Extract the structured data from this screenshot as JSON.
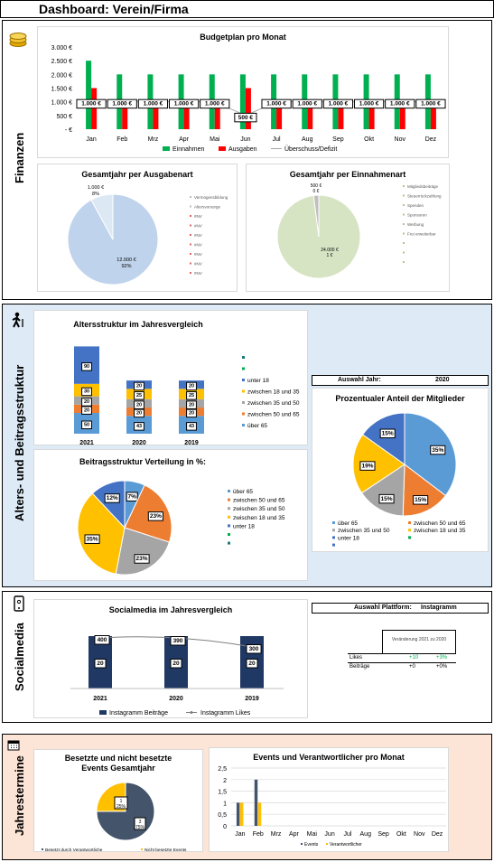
{
  "header": {
    "title": "Dashboard: Verein/Firma"
  },
  "sections": {
    "finanzen": "Finanzen",
    "alters": "Alters- und Beitragsstruktur",
    "social": "Socialmedia",
    "termine": "Jahrestermine"
  },
  "icons": {
    "finanzen": "coins-icon",
    "alters": "walking-person-icon",
    "social": "phone-icon",
    "termine": "calendar-icon"
  },
  "colors": {
    "finanzen_bg": "#ffffff",
    "alters_bg": "#deebf7",
    "social_bg": "#ffffff",
    "termine_bg": "#fce4d6",
    "green": "#00b050",
    "red": "#ff0000",
    "navy": "#203864"
  },
  "budget": {
    "chart_data": {
      "type": "bar",
      "title": "Budgetplan pro Monat",
      "categories": [
        "Jan",
        "Feb",
        "Mrz",
        "Apr",
        "Mai",
        "Jun",
        "Jul",
        "Aug",
        "Sep",
        "Okt",
        "Nov",
        "Dez"
      ],
      "yticks": [
        "3.000 €",
        "2.500 €",
        "2.000 €",
        "1.500 €",
        "1.000 €",
        "500 €",
        "- €"
      ],
      "ylim": [
        0,
        3000
      ],
      "series": [
        {
          "name": "Einnahmen",
          "values": [
            2500,
            2000,
            2000,
            2000,
            2000,
            2000,
            2000,
            2000,
            2000,
            2000,
            2000,
            2000
          ]
        },
        {
          "name": "Ausgaben",
          "values": [
            1500,
            1000,
            1000,
            1000,
            1000,
            1500,
            1000,
            1000,
            1000,
            1000,
            1000,
            1000
          ]
        },
        {
          "name": "Überschuss/Defizit",
          "values": [
            1000,
            1000,
            1000,
            1000,
            1000,
            500,
            1000,
            1000,
            1000,
            1000,
            1000,
            1000
          ]
        }
      ],
      "data_labels": [
        "1.000 €",
        "1.000 €",
        "1.000 €",
        "1.000 €",
        "1.000 €",
        "500 €",
        "1.000 €",
        "1.000 €",
        "1.000 €",
        "1.000 €",
        "1.000 €",
        "1.000 €"
      ]
    }
  },
  "ausgaben": {
    "chart_data": {
      "type": "pie",
      "title": "Gesamtjahr per Ausgabenart",
      "slices": [
        {
          "label": "12.000 €",
          "pct": "92%",
          "value": 92
        },
        {
          "label": "1.000 €",
          "pct": "8%",
          "value": 8
        }
      ],
      "legend": [
        "Vermögensbildung",
        "Altersvorsorge",
        "#NV",
        "#NV",
        "#NV",
        "#NV",
        "#NV",
        "#NV",
        "#NV"
      ]
    }
  },
  "einnahmen": {
    "chart_data": {
      "type": "pie",
      "title": "Gesamtjahr per Einnahmenart",
      "slices": [
        {
          "label": "24.000 €",
          "pct": "1 €",
          "value": 98
        },
        {
          "label": "500 €",
          "pct": "0 €",
          "value": 2
        }
      ],
      "legend": [
        "Mitgliedsbeiträge",
        "Steuerrückzahlung",
        "Spenden",
        "Sponsoren",
        "Werbung",
        "Frei erweiterbar",
        "",
        "",
        ""
      ]
    }
  },
  "alter": {
    "chart_data": {
      "type": "bar",
      "title": "Altersstruktur im Jahresvergleich",
      "categories": [
        "2021",
        "2020",
        "2019"
      ],
      "series": [
        {
          "name": "über 65",
          "values": [
            50,
            43,
            43
          ]
        },
        {
          "name": "zwischen 50 und 65",
          "values": [
            20,
            20,
            20
          ]
        },
        {
          "name": "zwischen 35 und 50",
          "values": [
            20,
            20,
            20
          ]
        },
        {
          "name": "zwischen 18 und 35",
          "values": [
            30,
            25,
            25
          ]
        },
        {
          "name": "unter 18",
          "values": [
            90,
            20,
            20
          ]
        }
      ],
      "legend": [
        "",
        "",
        "unter 18",
        "zwischen 18 und 35",
        "zwischen 35 und 50",
        "zwischen 50 und 65",
        "über 65"
      ]
    }
  },
  "beitrag": {
    "chart_data": {
      "type": "pie",
      "title": "Beitragsstruktur Verteilung in %:",
      "slices": [
        {
          "label": "7%",
          "value": 7
        },
        {
          "label": "23%",
          "value": 23
        },
        {
          "label": "23%",
          "value": 23
        },
        {
          "label": "35%",
          "value": 35
        },
        {
          "label": "12%",
          "value": 12
        }
      ],
      "legend": [
        "über 65",
        "zwischen 50 und 65",
        "zwischen 35 und 50",
        "zwischen 18 und 35",
        "unter 18",
        "",
        ""
      ]
    }
  },
  "auswahl_jahr": {
    "label": "Auswahl Jahr:",
    "value": "2020"
  },
  "prozent": {
    "chart_data": {
      "type": "pie",
      "title": "Prozentualer Anteil der Mitglieder",
      "slices": [
        {
          "label": "35%",
          "value": 35
        },
        {
          "label": "15%",
          "value": 15
        },
        {
          "label": "15%",
          "value": 15
        },
        {
          "label": "19%",
          "value": 19
        },
        {
          "label": "15%",
          "value": 15
        }
      ],
      "legend": [
        "über 65",
        "zwischen 50 und 65",
        "zwischen 35 und 50",
        "zwischen 18 und 35",
        "unter 18",
        "",
        ""
      ]
    }
  },
  "socialmedia": {
    "chart_data": {
      "type": "bar",
      "title": "Socialmedia im Jahresvergleich",
      "categories": [
        "2021",
        "2020",
        "2019"
      ],
      "series": [
        {
          "name": "Instagramm Beiträge",
          "values": [
            20,
            20,
            20
          ]
        },
        {
          "name": "Instagramm Likes",
          "values": [
            400,
            390,
            300
          ]
        }
      ]
    }
  },
  "auswahl_plattform": {
    "label": "Auswahl Plattform:",
    "value": "Instagramm"
  },
  "veraenderung": {
    "header": "Veränderung 2021 zu 2020",
    "rows": [
      {
        "label": "Likes",
        "a": "+10",
        "b": "+3%"
      },
      {
        "label": "Beiträge",
        "a": "+0",
        "b": "+0%"
      }
    ]
  },
  "events": {
    "chart_data": {
      "type": "pie",
      "title": "Besetzte und nicht besetzte Events Gesamtjahr",
      "title_line1": "Besetzte und nicht besetzte",
      "title_line2": "Events Gesamtjahr",
      "slices": [
        {
          "label": "3",
          "pct": "75%",
          "value": 75
        },
        {
          "label": "1",
          "pct": "25%",
          "value": 25
        }
      ],
      "legend": [
        "Besetzt durch Verantwortliche",
        "Nicht besetzte Events"
      ]
    }
  },
  "monat_events": {
    "chart_data": {
      "type": "bar",
      "title": "Events und Verantwortlicher pro Monat",
      "categories": [
        "Jan",
        "Feb",
        "Mrz",
        "Apr",
        "Mai",
        "Jun",
        "Jul",
        "Aug",
        "Sep",
        "Okt",
        "Nov",
        "Dez"
      ],
      "yticks": [
        "2,5",
        "2",
        "1,5",
        "1",
        "0,5",
        "0"
      ],
      "ylim": [
        0,
        2.5
      ],
      "series": [
        {
          "name": "Events",
          "values": [
            1,
            2,
            0,
            0,
            0,
            0,
            0,
            0,
            0,
            0,
            0,
            0
          ]
        },
        {
          "name": "Verantwortlicher",
          "values": [
            1,
            1,
            0,
            0,
            0,
            0,
            0,
            0,
            0,
            0,
            0,
            0
          ]
        }
      ]
    }
  }
}
